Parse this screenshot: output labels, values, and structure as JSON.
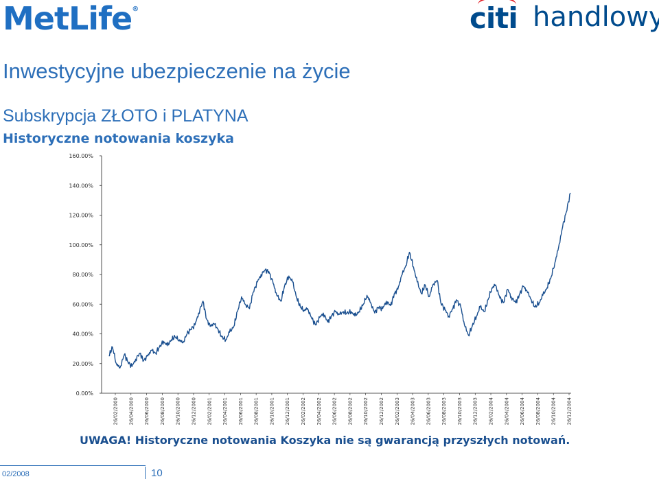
{
  "brand": {
    "metlife": "MetLife",
    "metlife_mark": "®",
    "citi": "citi",
    "handlowy": "handlowy",
    "metlife_color": "#1f6fc2",
    "citi_color": "#004b8d",
    "citi_arc_color": "#e31b23"
  },
  "header": {
    "title": "Inwestycyjne ubezpieczenie na życie",
    "subtitle": "Subskrypcja ZŁOTO i PLATYNA",
    "subtitle2": "Historyczne notowania koszyka"
  },
  "chart_data": {
    "type": "line",
    "title": "",
    "xlabel": "",
    "ylabel": "",
    "ylim": [
      0,
      160
    ],
    "y_ticks": [
      0,
      20,
      40,
      60,
      80,
      100,
      120,
      140,
      160
    ],
    "y_tick_labels": [
      "0.00%",
      "20.00%",
      "40.00%",
      "60.00%",
      "80.00%",
      "100.00%",
      "120.00%",
      "140.00%",
      "160.00%"
    ],
    "x_tick_labels": [
      "26/02/2000",
      "26/04/2000",
      "26/06/2000",
      "26/08/2000",
      "26/10/2000",
      "26/12/2000",
      "26/02/2001",
      "26/04/2001",
      "26/06/2001",
      "26/08/2001",
      "26/10/2001",
      "26/12/2001",
      "26/02/2002",
      "26/04/2002",
      "26/06/2002",
      "26/08/2002",
      "26/10/2002",
      "26/12/2002",
      "26/02/2003",
      "26/04/2003",
      "26/06/2003",
      "26/08/2003",
      "26/10/2003",
      "26/12/2003",
      "26/02/2004",
      "26/04/2004",
      "26/06/2004",
      "26/08/2004",
      "26/10/2004",
      "26/12/2004"
    ],
    "grid": false,
    "series_color": "#1a4f8f",
    "series": [
      {
        "x": [
          "2000-02-01",
          "2000-02-15",
          "2000-03-01",
          "2000-03-15",
          "2000-04-01",
          "2000-04-15",
          "2000-05-01",
          "2000-05-15",
          "2000-06-01",
          "2000-06-15",
          "2000-07-01",
          "2000-07-15",
          "2000-08-01",
          "2000-08-15",
          "2000-09-01",
          "2000-09-15",
          "2000-10-01",
          "2000-10-15",
          "2000-11-01",
          "2000-11-15",
          "2000-12-01",
          "2000-12-15",
          "2001-01-01",
          "2001-01-15",
          "2001-02-01",
          "2001-02-15",
          "2001-03-01",
          "2001-03-15",
          "2001-04-01",
          "2001-04-15",
          "2001-05-01",
          "2001-05-15",
          "2001-06-01",
          "2001-06-15",
          "2001-07-01",
          "2001-07-15",
          "2001-08-01",
          "2001-08-15",
          "2001-09-01",
          "2001-09-15",
          "2001-10-01",
          "2001-10-15",
          "2001-11-01",
          "2001-11-15",
          "2001-12-01",
          "2001-12-15",
          "2002-01-01",
          "2002-01-15",
          "2002-02-01",
          "2002-02-15",
          "2002-03-01",
          "2002-03-15",
          "2002-04-01",
          "2002-04-15",
          "2002-05-01",
          "2002-05-15",
          "2002-06-01",
          "2002-06-15",
          "2002-07-01",
          "2002-07-15",
          "2002-08-01",
          "2002-08-15",
          "2002-09-01",
          "2002-09-15",
          "2002-10-01",
          "2002-10-15",
          "2002-11-01",
          "2002-11-15",
          "2002-12-01",
          "2002-12-15",
          "2003-01-01",
          "2003-01-15",
          "2003-02-01",
          "2003-02-15",
          "2003-03-01",
          "2003-03-15",
          "2003-04-01",
          "2003-04-15",
          "2003-05-01",
          "2003-05-15",
          "2003-06-01",
          "2003-06-15",
          "2003-07-01",
          "2003-07-15",
          "2003-08-01",
          "2003-08-15",
          "2003-09-01",
          "2003-09-15",
          "2003-10-01",
          "2003-10-15",
          "2003-11-01",
          "2003-11-15",
          "2003-12-01",
          "2003-12-15",
          "2004-01-01",
          "2004-01-15",
          "2004-02-01",
          "2004-02-15",
          "2004-03-01",
          "2004-03-15",
          "2004-04-01",
          "2004-04-15",
          "2004-05-01",
          "2004-05-15",
          "2004-06-01",
          "2004-06-15",
          "2004-07-01",
          "2004-07-15",
          "2004-08-01",
          "2004-08-15",
          "2004-09-01",
          "2004-09-15",
          "2004-10-01",
          "2004-10-15",
          "2004-11-01",
          "2004-11-15",
          "2004-12-01",
          "2004-12-15",
          "2004-12-31"
        ],
        "values": [
          25,
          31,
          20,
          17,
          26,
          21,
          18,
          23,
          27,
          22,
          25,
          29,
          27,
          31,
          35,
          32,
          36,
          38,
          36,
          34,
          40,
          43,
          46,
          54,
          62,
          50,
          45,
          47,
          43,
          38,
          36,
          41,
          45,
          55,
          65,
          60,
          57,
          68,
          75,
          80,
          83,
          82,
          74,
          66,
          62,
          72,
          79,
          75,
          64,
          58,
          56,
          57,
          50,
          46,
          51,
          54,
          48,
          52,
          55,
          53,
          55,
          54,
          55,
          52,
          55,
          59,
          66,
          61,
          54,
          58,
          57,
          62,
          59,
          67,
          70,
          79,
          86,
          95,
          85,
          75,
          67,
          73,
          65,
          73,
          76,
          61,
          56,
          52,
          57,
          63,
          58,
          46,
          39,
          45,
          52,
          58,
          55,
          63,
          71,
          73,
          64,
          61,
          70,
          65,
          61,
          66,
          72,
          69,
          63,
          58,
          61,
          66,
          71,
          77,
          88,
          98,
          112,
          122,
          135
        ]
      }
    ]
  },
  "warning": "UWAGA! Historyczne notowania Koszyka nie są gwarancją przyszłych notowań.",
  "footer": {
    "date": "02/2008",
    "page": "10"
  }
}
